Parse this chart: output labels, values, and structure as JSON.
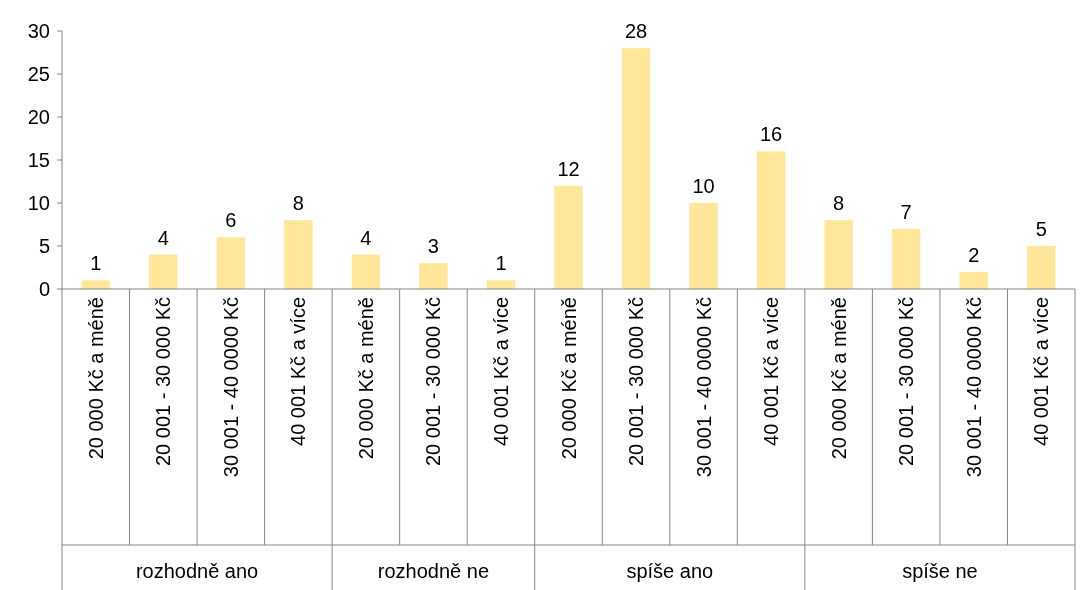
{
  "chart_data": {
    "type": "bar",
    "categories": [
      "20 000 Kč a méně",
      "20 001 - 30 000 Kč",
      "30 001 - 40 0000 Kč",
      "40 001 Kč a více",
      "20 000 Kč a méně",
      "20 001 - 30 000 Kč",
      "40 001 Kč a více",
      "20 000 Kč a méně",
      "20 001 - 30 000 Kč",
      "30 001 - 40 0000 Kč",
      "40 001 Kč a více",
      "20 000 Kč a méně",
      "20 001 - 30 000 Kč",
      "30 001 - 40 0000 Kč",
      "40 001 Kč a více"
    ],
    "values": [
      1,
      4,
      6,
      8,
      4,
      3,
      1,
      12,
      28,
      10,
      16,
      8,
      7,
      2,
      5
    ],
    "color": "#ffe699",
    "ylim": [
      0,
      30
    ],
    "yticks": [
      0,
      5,
      10,
      15,
      20,
      25,
      30
    ],
    "data_labels": true,
    "grid": false,
    "annotations": [
      "rozhodně ano",
      "rozhodně ne",
      "spíše ano",
      "spíše ne"
    ]
  }
}
